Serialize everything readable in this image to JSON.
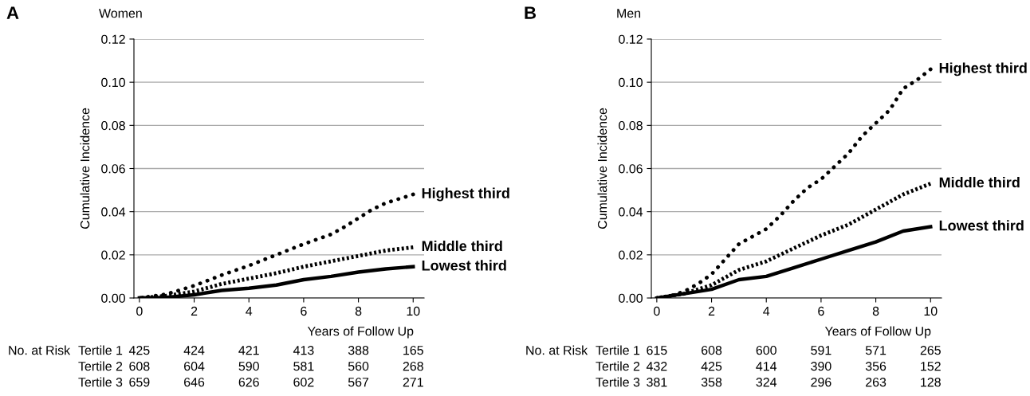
{
  "chart_data": [
    {
      "type": "line",
      "title": "Women",
      "xlabel": "Years of Follow Up",
      "ylabel": "Cumulative Incidence",
      "grid": "y",
      "xlim": [
        -0.2,
        10.4
      ],
      "xticks": [
        0,
        2,
        4,
        6,
        8,
        10
      ],
      "ylim": [
        0,
        0.12
      ],
      "yticks": [
        {
          "value": 0,
          "label": "0.00"
        },
        {
          "value": 0.02,
          "label": "0.02"
        },
        {
          "value": 0.04,
          "label": "0.04"
        },
        {
          "value": 0.06,
          "label": "0.06"
        },
        {
          "value": 0.08,
          "label": "0.08"
        },
        {
          "value": 0.1,
          "label": "0.10"
        },
        {
          "value": 0.12,
          "label": "0.12"
        }
      ],
      "series": [
        {
          "name": "Highest third",
          "color": "#000000",
          "line_style": "dotted",
          "x": [
            0,
            1,
            2,
            3,
            4,
            5,
            6,
            7,
            7.5,
            8,
            8.5,
            9,
            10
          ],
          "values": [
            0,
            0.0018,
            0.0057,
            0.0106,
            0.015,
            0.02,
            0.025,
            0.0295,
            0.033,
            0.037,
            0.041,
            0.044,
            0.048
          ]
        },
        {
          "name": "Middle third",
          "color": "#000000",
          "line_style": "dashed",
          "x": [
            0,
            1,
            2,
            3,
            4,
            5,
            6,
            7,
            8,
            9,
            10
          ],
          "values": [
            0,
            0.001,
            0.003,
            0.0065,
            0.009,
            0.0115,
            0.0145,
            0.017,
            0.0195,
            0.022,
            0.0235
          ]
        },
        {
          "name": "Lowest third",
          "color": "#000000",
          "line_style": "solid",
          "x": [
            0,
            1,
            2,
            3,
            4,
            5,
            6,
            7,
            8,
            9,
            10
          ],
          "values": [
            0,
            0.0003,
            0.0015,
            0.0035,
            0.0045,
            0.006,
            0.0085,
            0.01,
            0.012,
            0.0135,
            0.0145
          ]
        }
      ],
      "annotations": [
        "A",
        "No. at Risk",
        "Tertile 1",
        "425",
        "424",
        "421",
        "413",
        "388",
        "165",
        "Tertile 2",
        "608",
        "604",
        "590",
        "581",
        "560",
        "268",
        "Tertile 3",
        "659",
        "646",
        "626",
        "602",
        "567",
        "271"
      ]
    },
    {
      "type": "line",
      "title": "Men",
      "xlabel": "Years of Follow Up",
      "ylabel": "Cumulative Incidence",
      "grid": "y",
      "xlim": [
        -0.2,
        10.4
      ],
      "xticks": [
        0,
        2,
        4,
        6,
        8,
        10
      ],
      "ylim": [
        0,
        0.12
      ],
      "yticks": [
        {
          "value": 0,
          "label": "0.00"
        },
        {
          "value": 0.02,
          "label": "0.02"
        },
        {
          "value": 0.04,
          "label": "0.04"
        },
        {
          "value": 0.06,
          "label": "0.06"
        },
        {
          "value": 0.08,
          "label": "0.08"
        },
        {
          "value": 0.1,
          "label": "0.10"
        },
        {
          "value": 0.12,
          "label": "0.12"
        }
      ],
      "series": [
        {
          "name": "Highest third",
          "color": "#000000",
          "line_style": "dotted",
          "x": [
            0,
            0.5,
            1,
            1.5,
            2,
            2.5,
            3,
            4,
            4.5,
            5,
            5.5,
            6,
            6.5,
            7,
            7.5,
            8,
            8.5,
            9,
            9.5,
            10
          ],
          "values": [
            0,
            0.001,
            0.003,
            0.0065,
            0.011,
            0.018,
            0.025,
            0.032,
            0.038,
            0.045,
            0.051,
            0.055,
            0.061,
            0.067,
            0.075,
            0.081,
            0.087,
            0.097,
            0.101,
            0.106
          ]
        },
        {
          "name": "Middle third",
          "color": "#000000",
          "line_style": "dashed",
          "x": [
            0,
            1,
            2,
            3,
            4,
            5,
            6,
            7,
            8,
            9,
            10
          ],
          "values": [
            0,
            0.002,
            0.006,
            0.013,
            0.017,
            0.023,
            0.029,
            0.034,
            0.041,
            0.048,
            0.053
          ]
        },
        {
          "name": "Lowest third",
          "color": "#000000",
          "line_style": "solid",
          "x": [
            0,
            1,
            2,
            3,
            4,
            5,
            6,
            7,
            8,
            9,
            10
          ],
          "values": [
            0,
            0.002,
            0.004,
            0.0085,
            0.01,
            0.014,
            0.018,
            0.022,
            0.026,
            0.031,
            0.033
          ]
        }
      ],
      "annotations": [
        "B",
        "No. at Risk",
        "Tertile 1",
        "615",
        "608",
        "600",
        "591",
        "571",
        "265",
        "Tertile 2",
        "432",
        "425",
        "414",
        "390",
        "356",
        "152",
        "Tertile 3",
        "381",
        "358",
        "324",
        "296",
        "263",
        "128"
      ]
    }
  ]
}
